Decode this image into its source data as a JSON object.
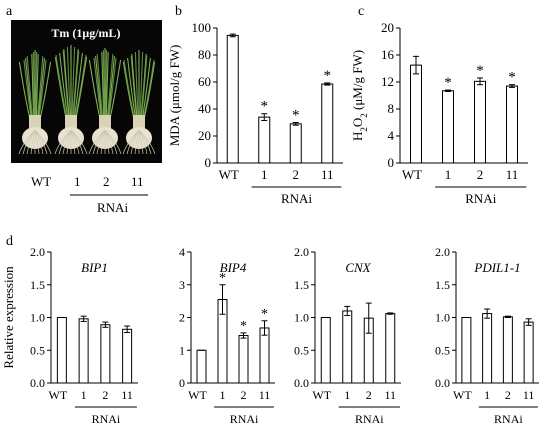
{
  "panel_labels": {
    "a": "a",
    "b": "b",
    "c": "c",
    "d": "d"
  },
  "photo": {
    "title": "Tm (1μg/mL)",
    "axis_labels": [
      "WT",
      "1",
      "2",
      "11"
    ],
    "group_label": "RNAi"
  },
  "chart_data": [
    {
      "id": "b",
      "type": "bar",
      "categories": [
        "WT",
        "1",
        "2",
        "11"
      ],
      "group_label": "RNAi",
      "values": [
        94.5,
        34,
        29,
        58.5
      ],
      "errors": [
        1.0,
        2.5,
        1.0,
        0.8
      ],
      "significant": [
        false,
        true,
        true,
        true
      ],
      "ylabel": "MDA (μmol/g FW)",
      "ylim": [
        0,
        100
      ],
      "yticks": [
        0,
        20,
        40,
        60,
        80,
        100
      ]
    },
    {
      "id": "c",
      "type": "bar",
      "categories": [
        "WT",
        "1",
        "2",
        "11"
      ],
      "group_label": "RNAi",
      "values": [
        14.5,
        10.7,
        12.1,
        11.4
      ],
      "errors": [
        1.3,
        0.1,
        0.5,
        0.2
      ],
      "significant": [
        false,
        true,
        true,
        true
      ],
      "ylabel_parts": [
        "H",
        "2",
        "O",
        "2",
        " (μM/g FW)"
      ],
      "ylim": [
        0,
        20
      ],
      "yticks": [
        0,
        4,
        8,
        12,
        16,
        20
      ]
    },
    {
      "id": "BIP1",
      "type": "bar",
      "title": "BIP1",
      "categories": [
        "WT",
        "1",
        "2",
        "11"
      ],
      "group_label": "RNAi",
      "values": [
        1.0,
        0.98,
        0.89,
        0.82
      ],
      "errors": [
        0,
        0.04,
        0.04,
        0.05
      ],
      "significant": [
        false,
        false,
        false,
        false
      ],
      "ylabel": "Relative expression",
      "ylim": [
        0,
        2.0
      ],
      "yticks": [
        "0.0",
        "0.5",
        "1.0",
        "1.5",
        "2.0"
      ]
    },
    {
      "id": "BIP4",
      "type": "bar",
      "title": "BIP4",
      "categories": [
        "WT",
        "1",
        "2",
        "11"
      ],
      "group_label": "RNAi",
      "values": [
        1.0,
        2.55,
        1.45,
        1.68
      ],
      "errors": [
        0,
        0.45,
        0.08,
        0.22
      ],
      "significant": [
        false,
        true,
        true,
        true
      ],
      "ylim": [
        0,
        4
      ],
      "yticks": [
        "0",
        "1",
        "2",
        "3",
        "4"
      ]
    },
    {
      "id": "CNX",
      "type": "bar",
      "title": "CNX",
      "categories": [
        "WT",
        "1",
        "2",
        "11"
      ],
      "group_label": "RNAi",
      "values": [
        1.0,
        1.1,
        0.99,
        1.06
      ],
      "errors": [
        0,
        0.07,
        0.23,
        0.01
      ],
      "significant": [
        false,
        false,
        false,
        false
      ],
      "ylim": [
        0,
        2.0
      ],
      "yticks": [
        "0.0",
        "0.5",
        "1.0",
        "1.5",
        "2.0"
      ]
    },
    {
      "id": "PDIL1-1",
      "type": "bar",
      "title": "PDIL1-1",
      "categories": [
        "WT",
        "1",
        "2",
        "11"
      ],
      "group_label": "RNAi",
      "values": [
        1.0,
        1.06,
        1.01,
        0.93
      ],
      "errors": [
        0,
        0.07,
        0.01,
        0.05
      ],
      "significant": [
        false,
        false,
        false,
        false
      ],
      "ylim": [
        0,
        2.0
      ],
      "yticks": [
        "0.0",
        "0.5",
        "1.0",
        "1.5",
        "2.0"
      ]
    }
  ],
  "marker": "*"
}
